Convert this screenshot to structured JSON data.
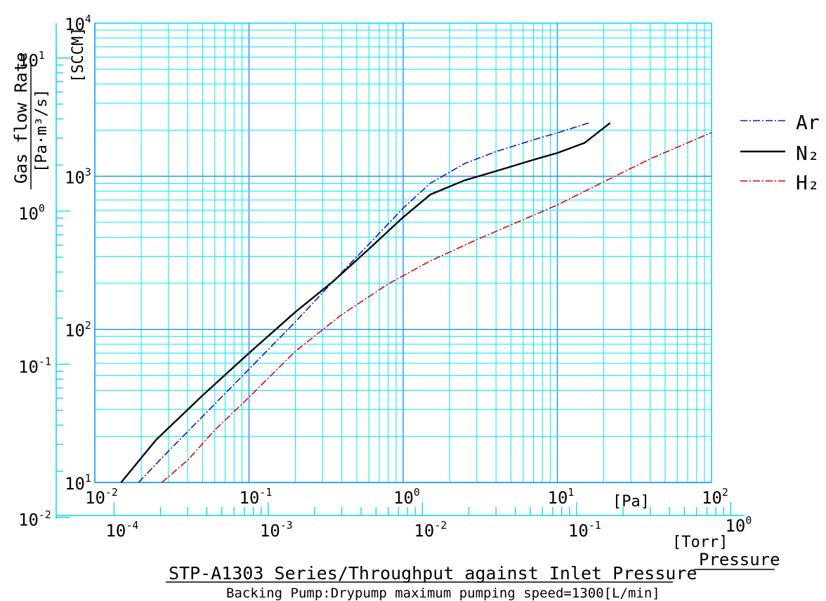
{
  "chart_data": {
    "type": "line",
    "title": "STP-A1303 Series/Throughput against Inlet Pressure",
    "subtitle": "Backing Pump:Drypump  maximum pumping speed=1300[L/min]",
    "xlabel": "Pressure",
    "x_units": [
      "[Pa]",
      "[Torr]"
    ],
    "ylabel": "Gas flow Rate",
    "y_units": [
      "[Pa·m³/s]",
      "[SCCM]"
    ],
    "x_scale": "log",
    "y_scale": "log",
    "xlim_pa": [
      0.01,
      100
    ],
    "ylim_sccm": [
      10,
      10000
    ],
    "xlim_torr_labels": [
      0.0001,
      1
    ],
    "ylim_pam3s_labels": [
      0.01,
      10
    ],
    "grid": true,
    "legend_position": "right",
    "tick_labels": {
      "x_pa": [
        {
          "base": "10",
          "exp": "-2"
        },
        {
          "base": "10",
          "exp": "-1"
        },
        {
          "base": "10",
          "exp": "0"
        },
        {
          "base": "10",
          "exp": "1"
        },
        {
          "base": "10",
          "exp": "2"
        }
      ],
      "x_torr": [
        {
          "base": "10",
          "exp": "-4"
        },
        {
          "base": "10",
          "exp": "-3"
        },
        {
          "base": "10",
          "exp": "-2"
        },
        {
          "base": "10",
          "exp": "-1"
        },
        {
          "base": "10",
          "exp": "0"
        }
      ],
      "y_sccm": [
        {
          "base": "10",
          "exp": "1"
        },
        {
          "base": "10",
          "exp": "2"
        },
        {
          "base": "10",
          "exp": "3"
        },
        {
          "base": "10",
          "exp": "4"
        }
      ],
      "y_pam3s": [
        {
          "base": "10",
          "exp": "-2"
        },
        {
          "base": "10",
          "exp": "-1"
        },
        {
          "base": "10",
          "exp": "0"
        },
        {
          "base": "10",
          "exp": "1"
        }
      ]
    },
    "series": [
      {
        "name": "Ar",
        "color": "#1010e0",
        "dash": "dash-dot",
        "x": [
          0.0192,
          0.03,
          0.05,
          0.1,
          0.2,
          0.35,
          0.6,
          1.0,
          1.5,
          2.5,
          4,
          7,
          10,
          16
        ],
        "y": [
          10,
          16,
          27,
          55,
          112,
          205,
          360,
          620,
          900,
          1210,
          1450,
          1730,
          1920,
          2230
        ]
      },
      {
        "name": "N₂",
        "color": "#000000",
        "dash": "solid",
        "x": [
          0.0148,
          0.025,
          0.05,
          0.1,
          0.2,
          0.35,
          0.6,
          1.0,
          1.5,
          2.5,
          4,
          7,
          10,
          15,
          22
        ],
        "y": [
          10,
          19,
          37,
          70,
          130,
          205,
          335,
          540,
          760,
          940,
          1080,
          1280,
          1420,
          1650,
          2230
        ]
      },
      {
        "name": "H₂",
        "color": "#e00000",
        "dash": "dash-dot",
        "x": [
          0.0272,
          0.04,
          0.06,
          0.1,
          0.2,
          0.4,
          0.8,
          1.5,
          3,
          6,
          10,
          20,
          40,
          100
        ],
        "y": [
          10,
          14,
          22,
          36,
          72,
          125,
          198,
          280,
          385,
          520,
          650,
          920,
          1300,
          1930
        ]
      }
    ]
  },
  "colors": {
    "grid": "#00e5ff",
    "major_grid": "#1a8fff",
    "axis_frame": "#00d0ff"
  }
}
